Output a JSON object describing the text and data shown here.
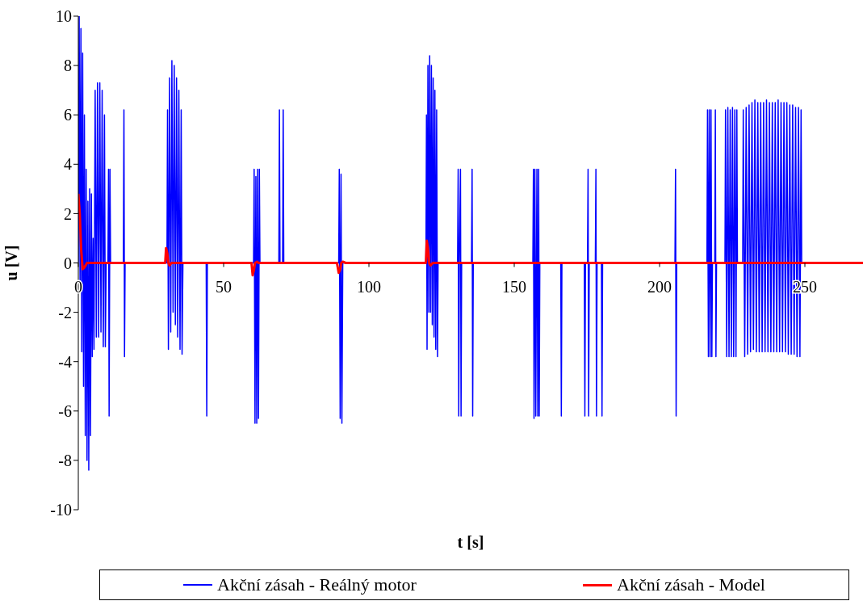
{
  "chart_data": {
    "type": "line",
    "xlabel": "t [s]",
    "ylabel": "u [V]",
    "xlim": [
      0,
      270
    ],
    "xticks": [
      0,
      50,
      100,
      150,
      200,
      250
    ],
    "ylim": [
      -10,
      10
    ],
    "yticks": [
      -10,
      -8,
      -6,
      -4,
      -2,
      0,
      2,
      4,
      6,
      8,
      10
    ],
    "legend": "bottom",
    "marker": "none",
    "line_style": "solid",
    "series": [
      {
        "name": "Akční zásah - Reálný motor",
        "color": "#0000ff",
        "x": [
          0,
          0.3,
          0.6,
          0.9,
          1.2,
          1.5,
          1.8,
          2.1,
          2.4,
          2.7,
          3.0,
          3.3,
          3.6,
          3.9,
          4.2,
          4.5,
          4.8,
          5.1,
          5.4,
          5.8,
          6.2,
          6.6,
          7.0,
          7.4,
          7.8,
          8.2,
          8.6,
          9.0,
          9.3,
          9.6,
          10.2,
          10.4,
          10.6,
          10.9,
          11.1,
          15.5,
          15.7,
          15.9,
          16.1,
          30.5,
          30.7,
          31.0,
          31.4,
          31.8,
          32.2,
          32.6,
          33.0,
          33.4,
          33.8,
          34.2,
          34.6,
          35.0,
          35.4,
          35.7,
          36.0,
          44,
          44.2,
          44.4,
          60.3,
          60.5,
          60.8,
          61.1,
          61.4,
          61.7,
          62.0,
          62.3,
          62.5,
          69,
          69.2,
          69.4,
          70.3,
          70.5,
          70.7,
          89.6,
          89.8,
          90.1,
          90.4,
          90.7,
          91,
          119.6,
          119.8,
          120.0,
          120.3,
          120.6,
          120.9,
          121.2,
          121.5,
          121.8,
          122.1,
          122.4,
          122.7,
          123.0,
          123.3,
          123.6,
          123.8,
          130.5,
          130.7,
          130.9,
          131.1,
          131.5,
          131.7,
          131.9,
          135.3,
          135.5,
          135.7,
          135.9,
          156.4,
          156.6,
          156.8,
          157.1,
          157.4,
          157.8,
          158.1,
          158.4,
          158.6,
          158.8,
          166,
          166.2,
          166.4,
          174.1,
          174.3,
          174.5,
          175.2,
          175.4,
          175.6,
          175.8,
          177.9,
          178.1,
          178.3,
          178.5,
          180,
          180.2,
          180.4,
          205.3,
          205.5,
          205.7,
          205.9,
          216.3,
          216.5,
          216.8,
          217.1,
          217.4,
          217.7,
          218.0,
          218.2,
          219,
          219.2,
          219.4,
          219.6,
          222.5,
          222.7,
          223.1,
          223.5,
          223.9,
          224.3,
          224.7,
          225.1,
          225.5,
          225.9,
          226.3,
          226.6,
          226.8,
          228.6,
          228.8,
          229.3,
          229.8,
          230.3,
          230.8,
          231.3,
          231.8,
          232.3,
          232.8,
          233.3,
          233.8,
          234.3,
          234.8,
          235.3,
          235.8,
          236.3,
          236.8,
          237.3,
          237.8,
          238.3,
          238.8,
          239.3,
          239.8,
          240.3,
          240.8,
          241.3,
          241.8,
          242.3,
          242.8,
          243.3,
          243.8,
          244.3,
          244.8,
          245.3,
          245.8,
          246.3,
          246.8,
          247.3,
          247.8,
          248.3,
          248.7,
          248.9
        ],
        "values": [
          0,
          10,
          -1,
          9.5,
          -3.6,
          8.5,
          -5,
          6,
          -7,
          3.8,
          -8,
          2.5,
          -8.4,
          3,
          -7,
          2.8,
          -3.8,
          1,
          -3.5,
          7,
          -3,
          7.3,
          -3,
          7.3,
          -2.8,
          7,
          -3.4,
          6,
          -3.4,
          0,
          0,
          3.8,
          -6.2,
          3.8,
          0,
          0,
          6.2,
          -3.8,
          0,
          0,
          6.2,
          -3.5,
          7.5,
          -2.8,
          8.2,
          -2,
          8,
          -2.5,
          7.5,
          -3,
          7,
          -3.5,
          6.2,
          -3.7,
          0,
          0,
          -6.2,
          0,
          0,
          3.8,
          -6.5,
          3.5,
          -6.5,
          3.8,
          -6.3,
          3.8,
          0,
          0,
          6.2,
          0,
          0,
          6.2,
          0,
          0,
          3.8,
          -6.3,
          3.6,
          -6.5,
          0,
          0,
          6,
          -3.5,
          8,
          -2,
          8.4,
          -2,
          8,
          -2.5,
          7.5,
          -3,
          7,
          -3.5,
          6.2,
          -3.8,
          0,
          0,
          3.8,
          -6.2,
          0,
          3.8,
          -6.2,
          0,
          0,
          3.8,
          -6.2,
          0,
          0,
          3.8,
          -6.3,
          3.8,
          -6.2,
          3.8,
          -6.2,
          3.8,
          -6.2,
          0,
          0,
          -6.2,
          0,
          0,
          -6.2,
          0,
          0,
          3.8,
          -6.2,
          0,
          0,
          3.8,
          -6.2,
          0,
          0,
          -6.2,
          0,
          0,
          3.8,
          -6.2,
          0,
          0,
          6.2,
          -3.8,
          6.2,
          -3.8,
          6.2,
          -3.8,
          0,
          0,
          6.2,
          -3.8,
          0,
          0,
          6.2,
          -3.8,
          6.3,
          -3.8,
          6.2,
          -3.8,
          6.3,
          -3.8,
          6.2,
          -3.8,
          6.2,
          0,
          0,
          6.2,
          -3.8,
          6.3,
          -3.7,
          6.4,
          -3.6,
          6.5,
          -3.5,
          6.6,
          -3.6,
          6.5,
          -3.6,
          6.5,
          -3.6,
          6.5,
          -3.6,
          6.6,
          -3.6,
          6.5,
          -3.6,
          6.5,
          -3.6,
          6.5,
          -3.6,
          6.6,
          -3.6,
          6.5,
          -3.6,
          6.5,
          -3.6,
          6.5,
          -3.7,
          6.4,
          -3.7,
          6.4,
          -3.7,
          6.3,
          -3.8,
          6.3,
          -3.8,
          6.2,
          0
        ]
      },
      {
        "name": "Akční zásah - Model",
        "color": "#ff0000",
        "x": [
          0,
          0.5,
          1,
          1.5,
          2,
          3,
          29.9,
          30.2,
          30.6,
          31,
          31.4,
          32,
          59.6,
          60,
          60.4,
          60.8,
          61.5,
          62,
          89,
          89.6,
          90.0,
          90.5,
          91,
          92,
          119.6,
          119.9,
          120.3,
          120.7,
          121.2,
          122,
          270
        ],
        "values": [
          2.8,
          2,
          0.5,
          -0.25,
          -0.2,
          0,
          0,
          0.6,
          0.4,
          0,
          -0.1,
          0,
          0,
          -0.5,
          -0.3,
          0,
          0.05,
          0,
          0,
          -0.4,
          -0.3,
          0,
          0.05,
          0,
          0,
          0.9,
          0.6,
          0,
          -0.1,
          0,
          0
        ]
      }
    ]
  }
}
